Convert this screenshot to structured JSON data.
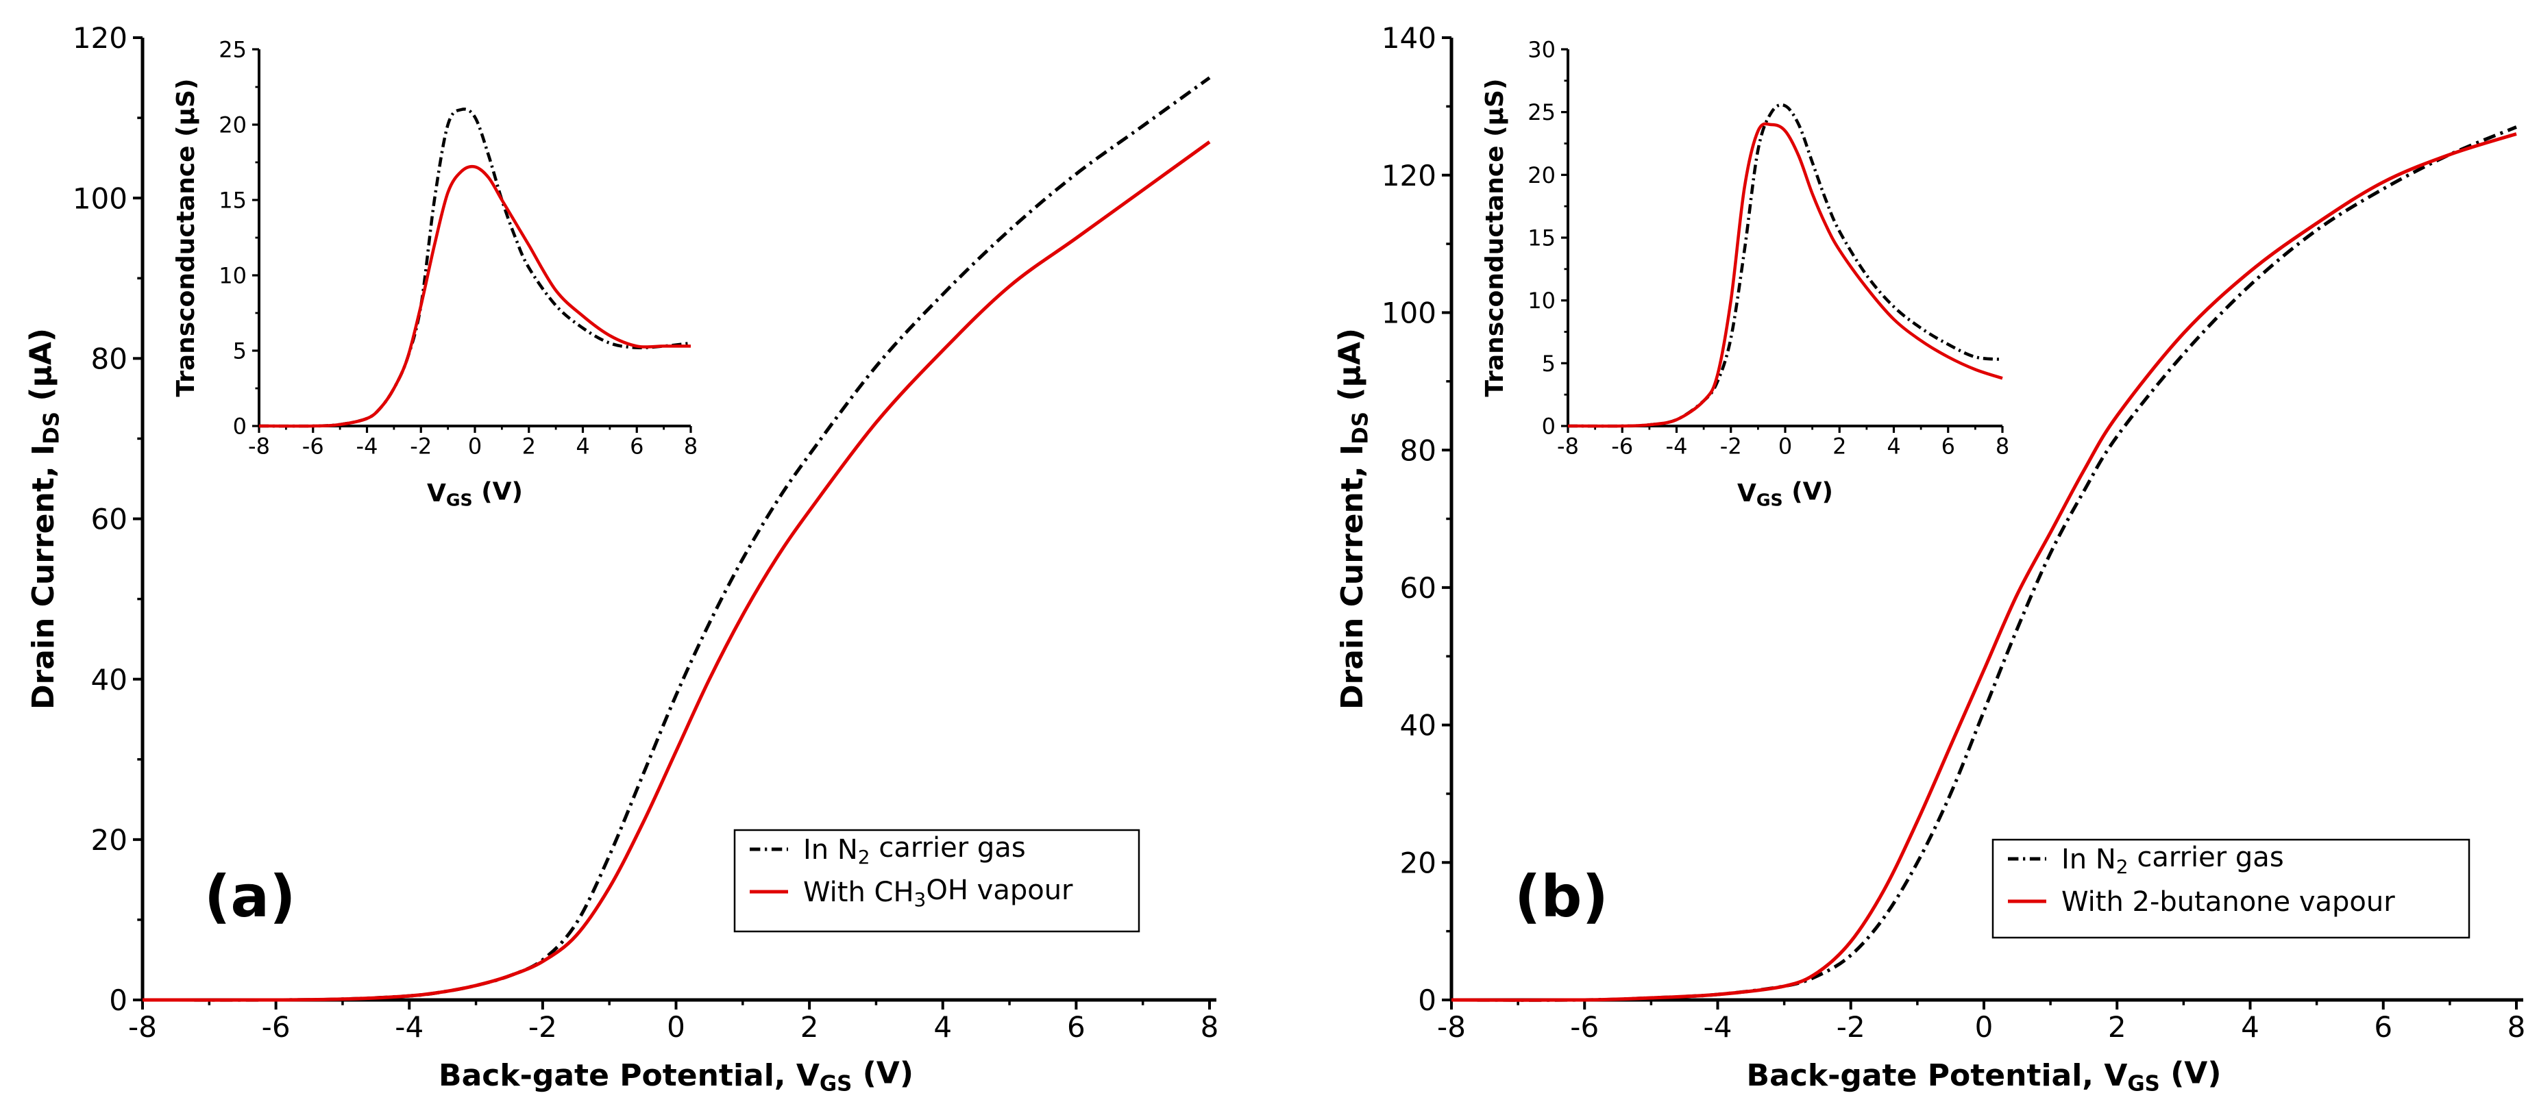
{
  "chart_data": [
    {
      "type": "line",
      "panel_label": "(a)",
      "xlabel": "Back-gate Potential, V",
      "xlabel_sub": "GS",
      "xlabel_suffix": " (V)",
      "ylabel": "Drain Current, I",
      "ylabel_sub": "DS",
      "ylabel_suffix": " (μA)",
      "xlim": [
        -8,
        8
      ],
      "ylim": [
        0,
        120
      ],
      "xticks": [
        "-8",
        "-6",
        "-4",
        "-2",
        "0",
        "2",
        "4",
        "6",
        "8"
      ],
      "yticks": [
        "0",
        "20",
        "40",
        "60",
        "80",
        "100",
        "120"
      ],
      "legend_position": "lower-right",
      "series": [
        {
          "name": "In N2 carrier gas",
          "legend_parts": [
            "In N",
            "2",
            " carrier gas"
          ],
          "color": "#000000",
          "style": "dash-dot",
          "x": [
            -8,
            -6,
            -5,
            -4,
            -3.5,
            -3,
            -2.5,
            -2,
            -1.5,
            -1,
            -0.5,
            0,
            0.5,
            1,
            1.5,
            2,
            3,
            4,
            5,
            6,
            7,
            8
          ],
          "y": [
            0,
            0,
            0.1,
            0.5,
            1.0,
            1.8,
            3.0,
            5.0,
            9.5,
            18,
            28,
            38,
            47,
            55,
            62,
            68,
            79,
            88,
            96,
            103,
            109,
            115
          ]
        },
        {
          "name": "With CH3OH vapour",
          "legend_parts": [
            "With CH",
            "3",
            "OH vapour"
          ],
          "color": "#e00000",
          "style": "solid",
          "x": [
            -8,
            -6,
            -5,
            -4,
            -3.5,
            -3,
            -2.5,
            -2,
            -1.5,
            -1,
            -0.5,
            0,
            0.5,
            1,
            1.5,
            2,
            3,
            4,
            5,
            6,
            7,
            8
          ],
          "y": [
            0,
            0,
            0.1,
            0.5,
            1.0,
            1.8,
            3.0,
            4.8,
            8.0,
            14,
            22,
            31,
            40,
            48,
            55,
            61,
            72,
            81,
            89,
            95,
            101,
            107
          ]
        }
      ],
      "inset": {
        "xlabel": "V",
        "xlabel_sub": "GS",
        "xlabel_suffix": " (V)",
        "ylabel": "Transconductance (μS)",
        "xlim": [
          -8,
          8
        ],
        "ylim": [
          0,
          25
        ],
        "xticks": [
          "-8",
          "-6",
          "-4",
          "-2",
          "0",
          "2",
          "4",
          "6",
          "8"
        ],
        "yticks": [
          "0",
          "5",
          "10",
          "15",
          "20",
          "25"
        ],
        "series": [
          {
            "name": "In N2 carrier gas",
            "color": "#000000",
            "style": "dash-dot",
            "x": [
              -8,
              -6,
              -5,
              -4,
              -3.5,
              -3,
              -2.5,
              -2,
              -1.5,
              -1,
              -0.5,
              0,
              0.5,
              1,
              1.5,
              2,
              3,
              4,
              5,
              6,
              7,
              8
            ],
            "y": [
              0,
              0,
              0.1,
              0.5,
              1.2,
              2.5,
              4.5,
              8,
              15,
              20,
              21,
              20.5,
              18,
              15,
              12.5,
              10.5,
              8,
              6.5,
              5.5,
              5.2,
              5.3,
              5.5
            ]
          },
          {
            "name": "With CH3OH vapour",
            "color": "#e00000",
            "style": "solid",
            "x": [
              -8,
              -6,
              -5,
              -4,
              -3.5,
              -3,
              -2.5,
              -2,
              -1.5,
              -1,
              -0.5,
              0,
              0.5,
              1,
              1.5,
              2,
              3,
              4,
              5,
              6,
              7,
              8
            ],
            "y": [
              0,
              0,
              0.1,
              0.5,
              1.2,
              2.5,
              4.5,
              8,
              12,
              15.5,
              16.9,
              17.2,
              16.5,
              15,
              13.5,
              12,
              9,
              7.3,
              6,
              5.3,
              5.3,
              5.3
            ]
          }
        ]
      }
    },
    {
      "type": "line",
      "panel_label": "(b)",
      "xlabel": "Back-gate Potential, V",
      "xlabel_sub": "GS",
      "xlabel_suffix": " (V)",
      "ylabel": "Drain Current, I",
      "ylabel_sub": "DS",
      "ylabel_suffix": " (μA)",
      "xlim": [
        -8,
        8
      ],
      "ylim": [
        0,
        140
      ],
      "xticks": [
        "-8",
        "-6",
        "-4",
        "-2",
        "0",
        "2",
        "4",
        "6",
        "8"
      ],
      "yticks": [
        "0",
        "20",
        "40",
        "60",
        "80",
        "100",
        "120",
        "140"
      ],
      "legend_position": "lower-right",
      "series": [
        {
          "name": "In N2 carrier gas",
          "legend_parts": [
            "In N",
            "2",
            " carrier gas"
          ],
          "color": "#000000",
          "style": "dash-dot",
          "x": [
            -8,
            -6,
            -5,
            -4,
            -3,
            -2.5,
            -2,
            -1.5,
            -1,
            -0.5,
            0,
            0.5,
            1,
            1.5,
            2,
            3,
            4,
            5,
            6,
            7,
            8
          ],
          "y": [
            0,
            0,
            0.3,
            0.8,
            2.0,
            3.5,
            6.5,
            12,
            20,
            30,
            42,
            54,
            65,
            74,
            82,
            94,
            104,
            112,
            118,
            123,
            127
          ]
        },
        {
          "name": "With 2-butanone vapour",
          "legend_parts": [
            "With 2-butanone vapour",
            "",
            ""
          ],
          "color": "#e00000",
          "style": "solid",
          "x": [
            -8,
            -6,
            -5,
            -4,
            -3,
            -2.5,
            -2,
            -1.5,
            -1,
            -0.5,
            0,
            0.5,
            1,
            1.5,
            2,
            3,
            4,
            5,
            6,
            7,
            8
          ],
          "y": [
            0,
            0,
            0.3,
            0.8,
            2.0,
            4.0,
            8.5,
            16,
            26,
            37,
            48,
            59,
            68,
            77,
            85,
            97,
            106,
            113,
            119,
            123,
            126
          ]
        }
      ],
      "inset": {
        "xlabel": "V",
        "xlabel_sub": "GS",
        "xlabel_suffix": " (V)",
        "ylabel": "Transconductance (μS)",
        "xlim": [
          -8,
          8
        ],
        "ylim": [
          0,
          30
        ],
        "xticks": [
          "-8",
          "-6",
          "-4",
          "-2",
          "0",
          "2",
          "4",
          "6",
          "8"
        ],
        "yticks": [
          "0",
          "5",
          "10",
          "15",
          "20",
          "25",
          "30"
        ],
        "series": [
          {
            "name": "In N2 carrier gas",
            "color": "#000000",
            "style": "dash-dot",
            "x": [
              -8,
              -6,
              -5,
              -4,
              -3,
              -2.5,
              -2,
              -1.5,
              -1,
              -0.5,
              0,
              0.5,
              1,
              1.5,
              2,
              3,
              4,
              5,
              6,
              7,
              8
            ],
            "y": [
              0,
              0,
              0.1,
              0.5,
              2,
              3.5,
              7,
              14,
              22,
              25,
              25.5,
              24,
              21,
              18,
              15.5,
              12,
              9.5,
              7.8,
              6.5,
              5.5,
              5.3
            ]
          },
          {
            "name": "With 2-butanone vapour",
            "color": "#e00000",
            "style": "solid",
            "x": [
              -8,
              -6,
              -5,
              -4,
              -3,
              -2.5,
              -2,
              -1.5,
              -1,
              -0.5,
              0,
              0.5,
              1,
              1.5,
              2,
              3,
              4,
              5,
              6,
              7,
              8
            ],
            "y": [
              0,
              0,
              0.1,
              0.5,
              2,
              4,
              10,
              19,
              23.5,
              24,
              23.5,
              21.5,
              18.5,
              16,
              14,
              11,
              8.5,
              6.8,
              5.5,
              4.5,
              3.8
            ]
          }
        ]
      }
    }
  ]
}
